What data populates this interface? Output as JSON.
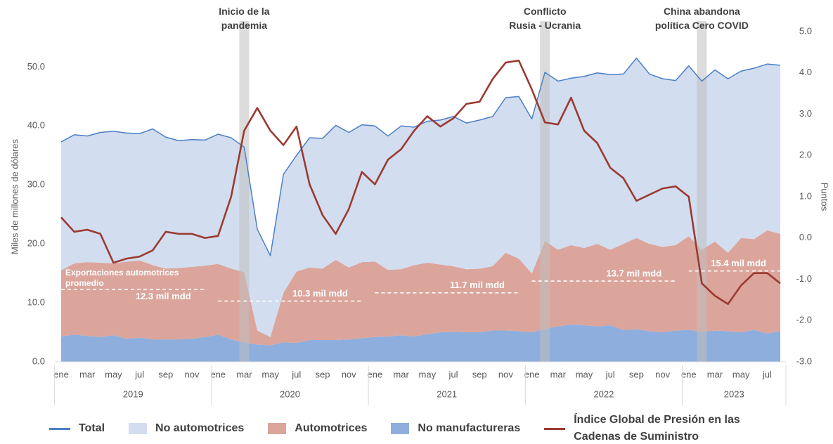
{
  "chart_data": {
    "type": "stacked-area-line",
    "ylabel": "Miles de millones de dólares",
    "y2label": "Puntos",
    "categories": [
      "ene",
      null,
      "mar",
      null,
      "may",
      null,
      "jul",
      null,
      "sep",
      null,
      "nov",
      null,
      "ene",
      null,
      "mar",
      null,
      "may",
      null,
      "jul",
      null,
      "sep",
      null,
      "nov",
      null,
      "ene",
      null,
      "mar",
      null,
      "may",
      null,
      "jul",
      null,
      "sep",
      null,
      "nov",
      null,
      "ene",
      null,
      "mar",
      null,
      "may",
      null,
      "jul",
      null,
      "sep",
      null,
      "nov",
      null,
      "ene",
      null,
      "mar",
      null,
      "may",
      null,
      "jul",
      null
    ],
    "years": [
      "2019",
      "2020",
      "2021",
      "2022",
      "2023"
    ],
    "ylim": [
      0,
      56
    ],
    "yticks": [
      {
        "value": 0,
        "label": "0.0"
      },
      {
        "value": 10,
        "label": "10.0"
      },
      {
        "value": 20,
        "label": "20.0"
      },
      {
        "value": 30,
        "label": "30.0"
      },
      {
        "value": 40,
        "label": "40.0"
      },
      {
        "value": 50,
        "label": "50.0"
      }
    ],
    "y2lim": [
      -3,
      5
    ],
    "y2ticks": [
      {
        "value": -3,
        "label": "-3.0"
      },
      {
        "value": -2,
        "label": "-2.0"
      },
      {
        "value": -1,
        "label": "-1.0"
      },
      {
        "value": 0,
        "label": "0.0"
      },
      {
        "value": 1,
        "label": "1.0"
      },
      {
        "value": 2,
        "label": "2.0"
      },
      {
        "value": 3,
        "label": "3.0"
      },
      {
        "value": 4,
        "label": "4.0"
      },
      {
        "value": 5,
        "label": "5.0"
      }
    ],
    "series": [
      {
        "name": "Total",
        "kind": "line",
        "color": "#4a7fc7",
        "values": [
          37.3,
          38.5,
          38.3,
          38.9,
          39.1,
          38.8,
          38.7,
          39.5,
          38.1,
          37.5,
          37.7,
          37.6,
          38.6,
          38.0,
          36.4,
          22.5,
          18.0,
          31.8,
          35.0,
          38.0,
          37.9,
          40.1,
          38.9,
          40.2,
          40.0,
          38.3,
          40.0,
          39.8,
          40.8,
          41.0,
          41.6,
          40.5,
          41.0,
          41.6,
          44.8,
          45.0,
          41.2,
          49.1,
          47.6,
          48.1,
          48.4,
          49.0,
          48.7,
          48.8,
          51.5,
          48.8,
          48.0,
          47.7,
          50.2,
          47.6,
          49.5,
          48.0,
          49.3,
          49.8,
          50.5,
          50.3
        ]
      },
      {
        "name": "No automotrices",
        "kind": "area",
        "color": "#d2ddef",
        "values": [
          21.8,
          21.8,
          21.4,
          22.1,
          22.4,
          21.8,
          21.5,
          23.1,
          22.3,
          21.6,
          21.6,
          21.3,
          22.0,
          22.2,
          21.2,
          17.2,
          13.8,
          20.1,
          19.7,
          22.0,
          22.1,
          22.8,
          22.9,
          23.3,
          23.0,
          22.7,
          24.3,
          23.4,
          24.0,
          24.5,
          25.4,
          24.8,
          25.2,
          25.4,
          26.3,
          27.5,
          26.2,
          28.6,
          28.6,
          28.3,
          29.1,
          29.0,
          29.7,
          28.8,
          30.5,
          28.8,
          28.5,
          27.9,
          28.9,
          28.6,
          29.1,
          29.5,
          28.3,
          29.0,
          28.2,
          28.6
        ]
      },
      {
        "name": "Automotrices",
        "kind": "area",
        "color": "#dba59c",
        "values": [
          11.2,
          12.1,
          12.5,
          12.6,
          12.2,
          13.1,
          13.1,
          12.6,
          12.0,
          12.1,
          12.2,
          12.1,
          12.0,
          12.0,
          11.9,
          2.4,
          1.4,
          8.4,
          12.1,
          12.3,
          12.1,
          13.6,
          12.2,
          12.9,
          12.8,
          11.3,
          11.2,
          12.1,
          12.1,
          11.5,
          11.1,
          10.7,
          10.8,
          10.9,
          13.2,
          12.3,
          10.0,
          14.9,
          13.0,
          13.5,
          13.1,
          14.0,
          12.8,
          14.6,
          15.5,
          14.8,
          14.5,
          14.5,
          15.9,
          13.9,
          15.1,
          13.3,
          16.0,
          15.4,
          17.5,
          16.5
        ]
      },
      {
        "name": "No manufactureras",
        "kind": "area",
        "color": "#8eaedd",
        "values": [
          4.3,
          4.6,
          4.4,
          4.2,
          4.5,
          3.9,
          4.1,
          3.8,
          3.8,
          3.8,
          3.9,
          4.2,
          4.6,
          3.8,
          3.3,
          2.9,
          2.8,
          3.3,
          3.2,
          3.7,
          3.7,
          3.7,
          3.8,
          4.0,
          4.2,
          4.3,
          4.5,
          4.3,
          4.7,
          5.0,
          5.1,
          5.0,
          5.0,
          5.3,
          5.3,
          5.2,
          5.0,
          5.6,
          6.0,
          6.3,
          6.2,
          6.0,
          6.2,
          5.4,
          5.5,
          5.2,
          5.0,
          5.3,
          5.4,
          5.1,
          5.3,
          5.2,
          5.0,
          5.4,
          4.8,
          5.2
        ]
      },
      {
        "name": "Índice Global de Presión en las Cadenas de Suministro",
        "kind": "line",
        "axis": "y2",
        "color": "#9b3a32",
        "values": [
          0.5,
          0.15,
          0.2,
          0.1,
          -0.6,
          -0.5,
          -0.45,
          -0.3,
          0.15,
          0.1,
          0.1,
          0.0,
          0.05,
          1.0,
          2.6,
          3.15,
          2.6,
          2.25,
          2.7,
          1.3,
          0.55,
          0.1,
          0.7,
          1.6,
          1.3,
          1.9,
          2.15,
          2.6,
          2.95,
          2.7,
          2.9,
          3.25,
          3.3,
          3.85,
          4.25,
          4.3,
          3.6,
          2.8,
          2.75,
          3.4,
          2.6,
          2.3,
          1.7,
          1.45,
          0.9,
          1.05,
          1.2,
          1.25,
          1.0,
          -1.1,
          -1.4,
          -1.6,
          -1.15,
          -0.85,
          -0.85,
          -1.1
        ]
      }
    ],
    "averages": {
      "name": "Exportaciones automotrices promedio",
      "values": [
        12.3,
        10.3,
        11.7,
        13.7,
        15.4
      ],
      "value_labels": [
        "12.3 mil mdd",
        "10.3 mil mdd",
        "11.7 mil mdd",
        "13.7 mil mdd",
        "15.4 mil mdd"
      ]
    },
    "annotations": [
      {
        "text": [
          "Inicio de la",
          "pandemia"
        ]
      },
      {
        "text": [
          "Conflicto",
          "Rusia - Ucrania"
        ]
      },
      {
        "text": [
          "China abandona",
          "política Cero COVID"
        ]
      }
    ]
  }
}
